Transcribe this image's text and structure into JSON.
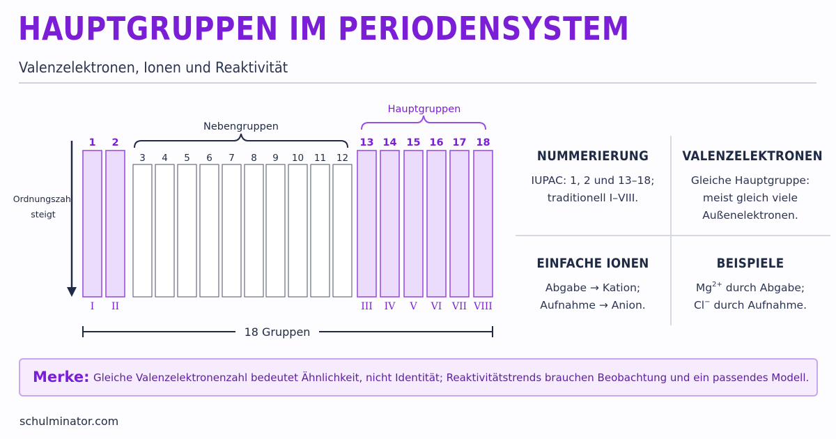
{
  "title": "HAUPTGRUPPEN IM PERIODENSYSTEM",
  "subtitle": "Valenzelektronen, Ionen und Reaktivität",
  "diagram": {
    "axis_label_line1": "Ordnungszahl",
    "axis_label_line2": "steigt",
    "brace_haupt": "Hauptgruppen",
    "brace_neben": "Nebengruppen",
    "bottom_label": "18 Gruppen",
    "columns": [
      {
        "num": "1",
        "roman": "I",
        "type": "main"
      },
      {
        "num": "2",
        "roman": "II",
        "type": "main"
      },
      {
        "num": "3",
        "roman": "",
        "type": "sub"
      },
      {
        "num": "4",
        "roman": "",
        "type": "sub"
      },
      {
        "num": "5",
        "roman": "",
        "type": "sub"
      },
      {
        "num": "6",
        "roman": "",
        "type": "sub"
      },
      {
        "num": "7",
        "roman": "",
        "type": "sub"
      },
      {
        "num": "8",
        "roman": "",
        "type": "sub"
      },
      {
        "num": "9",
        "roman": "",
        "type": "sub"
      },
      {
        "num": "10",
        "roman": "",
        "type": "sub"
      },
      {
        "num": "11",
        "roman": "",
        "type": "sub"
      },
      {
        "num": "12",
        "roman": "",
        "type": "sub"
      },
      {
        "num": "13",
        "roman": "III",
        "type": "main"
      },
      {
        "num": "14",
        "roman": "IV",
        "type": "main"
      },
      {
        "num": "15",
        "roman": "V",
        "type": "main"
      },
      {
        "num": "16",
        "roman": "VI",
        "type": "main"
      },
      {
        "num": "17",
        "roman": "VII",
        "type": "main"
      },
      {
        "num": "18",
        "roman": "VIII",
        "type": "main"
      }
    ],
    "colors": {
      "main_fill": "#ecdcfb",
      "main_stroke": "#9a4fe0",
      "main_text": "#7a1fd6",
      "sub_stroke": "#5a6170",
      "dark": "#1f2a44"
    }
  },
  "info": {
    "numbering": {
      "title": "NUMMERIERUNG",
      "line1": "IUPAC: 1, 2 und 13–18;",
      "line2": "traditionell I–VIII."
    },
    "valence": {
      "title": "VALENZELEKTRONEN",
      "line1": "Gleiche Hauptgruppe:",
      "line2": "meist gleich viele",
      "line3": "Außenelektronen."
    },
    "ions": {
      "title": "EINFACHE IONEN",
      "line1": "Abgabe → Kation;",
      "line2": "Aufnahme → Anion."
    },
    "examples": {
      "title": "BEISPIELE",
      "mg": "Mg",
      "mg_charge": "2+",
      "mg_rest": " durch Abgabe;",
      "cl": "Cl",
      "cl_charge": "−",
      "cl_rest": " durch Aufnahme."
    }
  },
  "merke": {
    "label": "Merke:",
    "text": "Gleiche Valenzelektronenzahl bedeutet Ähnlichkeit, nicht Identität; Reaktivitätstrends brauchen Beobachtung und ein passendes Modell."
  },
  "footer": "schulminator.com"
}
